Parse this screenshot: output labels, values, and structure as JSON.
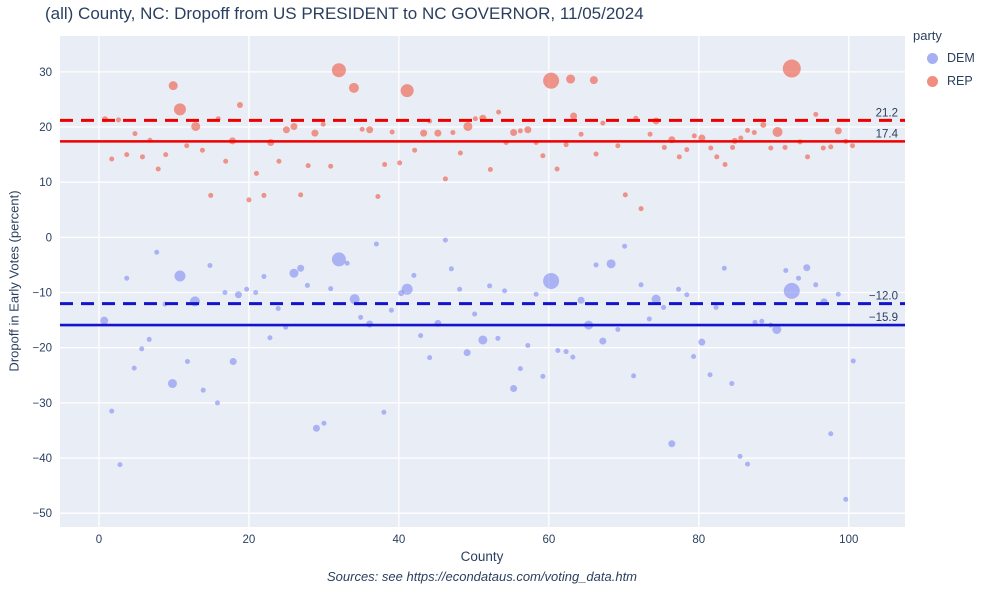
{
  "title": "(all) County, NC: Dropoff from US PRESIDENT to NC GOVERNOR, 11/05/2024",
  "source_note": "Sources: see https://econdataus.com/voting_data.htm",
  "legend": {
    "title": "party",
    "items": [
      {
        "label": "DEM",
        "color": "#a7aff3"
      },
      {
        "label": "REP",
        "color": "#f08d7e"
      }
    ]
  },
  "chart_data": {
    "type": "scatter",
    "title": "(all) County, NC: Dropoff from US PRESIDENT to NC GOVERNOR, 11/05/2024",
    "xlabel": "County",
    "ylabel": "Dropoff in Early Votes (percent)",
    "xlim": [
      -5.2,
      107.5
    ],
    "ylim": [
      -52.5,
      36.5
    ],
    "x_ticks": [
      0,
      20,
      40,
      60,
      80,
      100
    ],
    "y_ticks": [
      30,
      20,
      10,
      0,
      -10,
      -20,
      -30,
      -40,
      -50
    ],
    "grid": true,
    "plot_background": "#e8edf6",
    "grid_color": "#ffffff",
    "legend_position": "right",
    "series": [
      {
        "name": "DEM",
        "color": "rgb(120,130,240)",
        "opacity": 0.55,
        "points": [
          [
            0.7,
            -15.1,
            4
          ],
          [
            1.7,
            -31.5,
            2.5
          ],
          [
            2.8,
            -41.2,
            2.5
          ],
          [
            3.7,
            -7.4,
            2.5
          ],
          [
            4.7,
            -23.7,
            2.5
          ],
          [
            5.7,
            -20.2,
            2.5
          ],
          [
            6.7,
            -18.5,
            2.5
          ],
          [
            7.7,
            -2.7,
            2.5
          ],
          [
            8.8,
            -12.1,
            2.5
          ],
          [
            9.8,
            -26.5,
            4.5
          ],
          [
            10.8,
            -7.0,
            5.5
          ],
          [
            11.8,
            -22.5,
            2.5
          ],
          [
            12.8,
            -11.6,
            5
          ],
          [
            13.9,
            -27.7,
            2.5
          ],
          [
            14.8,
            -5.1,
            2.5
          ],
          [
            15.8,
            -30.0,
            2.5
          ],
          [
            16.8,
            -10.0,
            2.5
          ],
          [
            17.9,
            -22.5,
            3.5
          ],
          [
            18.6,
            -10.4,
            3.5
          ],
          [
            19.7,
            -9.4,
            2.5
          ],
          [
            20.9,
            -10.0,
            2.5
          ],
          [
            22.0,
            -7.1,
            2.5
          ],
          [
            22.8,
            -18.2,
            2.5
          ],
          [
            23.9,
            -12.9,
            2.5
          ],
          [
            24.9,
            -16.3,
            2.5
          ],
          [
            26.0,
            -6.5,
            4.5
          ],
          [
            26.9,
            -5.6,
            3.5
          ],
          [
            27.8,
            -8.7,
            2.5
          ],
          [
            29.0,
            -34.6,
            3.5
          ],
          [
            30.0,
            -33.7,
            2.5
          ],
          [
            30.9,
            -9.3,
            2.5
          ],
          [
            32.0,
            -4.0,
            7
          ],
          [
            33.1,
            -4.7,
            2.5
          ],
          [
            34.1,
            -11.2,
            5
          ],
          [
            34.9,
            -14.5,
            2.5
          ],
          [
            36.1,
            -15.7,
            3.5
          ],
          [
            37.0,
            -1.2,
            2.5
          ],
          [
            38.0,
            -31.7,
            2.5
          ],
          [
            39.0,
            -13.2,
            2.5
          ],
          [
            40.3,
            -10.1,
            3
          ],
          [
            41.1,
            -9.4,
            5.5
          ],
          [
            42.0,
            -6.9,
            2.5
          ],
          [
            42.9,
            -17.8,
            2.5
          ],
          [
            44.1,
            -21.8,
            2.5
          ],
          [
            45.2,
            -15.6,
            3.5
          ],
          [
            46.2,
            -0.5,
            2.5
          ],
          [
            47.0,
            -5.7,
            2.5
          ],
          [
            48.1,
            -9.4,
            2.5
          ],
          [
            49.1,
            -20.9,
            3.5
          ],
          [
            50.1,
            -13.9,
            2.5
          ],
          [
            51.2,
            -18.6,
            4.5
          ],
          [
            52.1,
            -8.8,
            2.5
          ],
          [
            53.2,
            -18.3,
            2.5
          ],
          [
            54.1,
            -9.7,
            2.5
          ],
          [
            55.3,
            -27.4,
            3.5
          ],
          [
            56.2,
            -23.8,
            2.5
          ],
          [
            57.2,
            -19.6,
            2.5
          ],
          [
            58.3,
            -10.3,
            2.5
          ],
          [
            59.2,
            -25.2,
            2.5
          ],
          [
            60.3,
            -7.9,
            8
          ],
          [
            61.2,
            -20.5,
            2.5
          ],
          [
            62.3,
            -20.7,
            2.5
          ],
          [
            63.2,
            -21.7,
            2.5
          ],
          [
            64.3,
            -11.4,
            3.5
          ],
          [
            65.3,
            -15.9,
            4.5
          ],
          [
            66.3,
            -5.0,
            2.5
          ],
          [
            67.2,
            -18.8,
            3.5
          ],
          [
            68.3,
            -4.8,
            4.5
          ],
          [
            69.2,
            -16.7,
            2.5
          ],
          [
            70.1,
            -1.6,
            2.5
          ],
          [
            71.3,
            -25.1,
            2.5
          ],
          [
            72.3,
            -8.6,
            2.5
          ],
          [
            73.4,
            -14.8,
            2.5
          ],
          [
            74.3,
            -11.2,
            4.5
          ],
          [
            75.3,
            -12.7,
            2.5
          ],
          [
            76.4,
            -37.4,
            3.5
          ],
          [
            77.3,
            -9.4,
            2.5
          ],
          [
            78.4,
            -10.4,
            2.5
          ],
          [
            79.3,
            -21.6,
            2.5
          ],
          [
            80.4,
            -19.0,
            3.5
          ],
          [
            81.5,
            -24.9,
            2.5
          ],
          [
            82.3,
            -12.7,
            2.5
          ],
          [
            83.4,
            -5.6,
            2.5
          ],
          [
            84.4,
            -26.5,
            2.5
          ],
          [
            85.5,
            -39.7,
            2.5
          ],
          [
            86.5,
            -41.1,
            2.5
          ],
          [
            87.5,
            -15.4,
            2.5
          ],
          [
            88.4,
            -15.2,
            2.5
          ],
          [
            89.6,
            -15.9,
            2.5
          ],
          [
            90.4,
            -16.7,
            4.5
          ],
          [
            91.6,
            -6.0,
            2.5
          ],
          [
            92.4,
            -9.7,
            8
          ],
          [
            93.3,
            -7.4,
            2.5
          ],
          [
            94.4,
            -5.5,
            3.5
          ],
          [
            95.6,
            -8.6,
            2.5
          ],
          [
            96.7,
            -11.7,
            3.5
          ],
          [
            97.6,
            -35.6,
            2.5
          ],
          [
            98.6,
            -10.3,
            2.5
          ],
          [
            99.6,
            -47.5,
            2.5
          ],
          [
            100.6,
            -22.4,
            2.5
          ]
        ]
      },
      {
        "name": "REP",
        "color": "rgb(240,90,70)",
        "opacity": 0.62,
        "points": [
          [
            0.8,
            21.4,
            3
          ],
          [
            1.7,
            14.2,
            2.5
          ],
          [
            2.6,
            21.3,
            2.5
          ],
          [
            3.7,
            15.0,
            2.5
          ],
          [
            4.8,
            18.8,
            2.5
          ],
          [
            5.8,
            14.6,
            2.5
          ],
          [
            6.8,
            17.6,
            2.5
          ],
          [
            7.9,
            12.4,
            2.5
          ],
          [
            8.9,
            15.0,
            2.5
          ],
          [
            9.9,
            27.5,
            4.5
          ],
          [
            10.8,
            23.2,
            6
          ],
          [
            11.7,
            16.6,
            2.5
          ],
          [
            12.9,
            20.1,
            4.5
          ],
          [
            13.8,
            15.8,
            2.5
          ],
          [
            14.9,
            7.6,
            2.5
          ],
          [
            15.9,
            21.5,
            2.5
          ],
          [
            16.9,
            13.8,
            2.5
          ],
          [
            17.8,
            17.5,
            3.5
          ],
          [
            18.8,
            24.0,
            3
          ],
          [
            20.0,
            6.8,
            2.5
          ],
          [
            21.0,
            11.6,
            2.5
          ],
          [
            22.0,
            7.6,
            2.5
          ],
          [
            22.9,
            17.2,
            3.5
          ],
          [
            24.0,
            13.8,
            2.5
          ],
          [
            25.0,
            19.5,
            3.5
          ],
          [
            26.0,
            20.1,
            3.5
          ],
          [
            26.9,
            7.7,
            2.5
          ],
          [
            27.9,
            13.0,
            2.5
          ],
          [
            28.8,
            18.9,
            3.5
          ],
          [
            29.9,
            20.5,
            2.5
          ],
          [
            30.9,
            12.9,
            2.5
          ],
          [
            32.0,
            30.3,
            7
          ],
          [
            34.0,
            27.1,
            5
          ],
          [
            35.1,
            19.6,
            2.5
          ],
          [
            36.1,
            19.5,
            3.5
          ],
          [
            37.2,
            7.4,
            2.5
          ],
          [
            38.1,
            13.2,
            2.5
          ],
          [
            39.1,
            19.1,
            2.5
          ],
          [
            40.1,
            13.5,
            2.5
          ],
          [
            41.1,
            26.6,
            6.5
          ],
          [
            42.1,
            15.8,
            2.5
          ],
          [
            43.3,
            18.9,
            3.5
          ],
          [
            44.1,
            21.1,
            2.5
          ],
          [
            45.2,
            18.9,
            3.5
          ],
          [
            46.2,
            10.6,
            2.5
          ],
          [
            47.2,
            19.0,
            2.5
          ],
          [
            48.2,
            15.3,
            2.5
          ],
          [
            49.2,
            20.1,
            4.5
          ],
          [
            50.2,
            21.5,
            2.5
          ],
          [
            51.2,
            21.6,
            3.5
          ],
          [
            52.2,
            12.3,
            2.5
          ],
          [
            53.3,
            22.7,
            2.5
          ],
          [
            54.3,
            17.2,
            2.5
          ],
          [
            55.3,
            19.0,
            3.5
          ],
          [
            56.2,
            19.3,
            2.5
          ],
          [
            57.2,
            19.5,
            3.5
          ],
          [
            58.3,
            17.2,
            2.5
          ],
          [
            59.2,
            14.8,
            2.5
          ],
          [
            60.3,
            28.4,
            8
          ],
          [
            61.1,
            12.4,
            2.5
          ],
          [
            62.3,
            16.8,
            2.5
          ],
          [
            62.9,
            28.7,
            4.5
          ],
          [
            63.3,
            22.0,
            3.5
          ],
          [
            64.3,
            18.7,
            2.5
          ],
          [
            66.0,
            28.5,
            4
          ],
          [
            66.3,
            15.1,
            2.5
          ],
          [
            67.2,
            20.7,
            2.5
          ],
          [
            69.2,
            16.6,
            2.5
          ],
          [
            70.2,
            7.7,
            2.5
          ],
          [
            71.6,
            21.6,
            2.5
          ],
          [
            72.3,
            5.2,
            2.5
          ],
          [
            73.5,
            18.7,
            2.5
          ],
          [
            74.3,
            21.1,
            3.5
          ],
          [
            75.4,
            16.3,
            2.5
          ],
          [
            76.4,
            17.7,
            3.5
          ],
          [
            77.4,
            14.6,
            2.5
          ],
          [
            78.4,
            15.9,
            2.5
          ],
          [
            79.4,
            18.4,
            2.5
          ],
          [
            80.4,
            18.0,
            3.5
          ],
          [
            81.6,
            16.2,
            2.5
          ],
          [
            82.4,
            14.6,
            2.5
          ],
          [
            83.5,
            13.2,
            2.5
          ],
          [
            84.5,
            16.3,
            2.5
          ],
          [
            84.8,
            17.5,
            3
          ],
          [
            85.6,
            18.0,
            2.5
          ],
          [
            86.5,
            19.4,
            2.5
          ],
          [
            87.4,
            19.0,
            2.5
          ],
          [
            88.6,
            20.4,
            3
          ],
          [
            89.6,
            16.2,
            2.5
          ],
          [
            90.5,
            19.1,
            5
          ],
          [
            91.5,
            16.3,
            2.5
          ],
          [
            92.4,
            30.6,
            9
          ],
          [
            93.5,
            17.3,
            2.5
          ],
          [
            94.5,
            14.6,
            2.5
          ],
          [
            95.6,
            22.3,
            2.5
          ],
          [
            96.6,
            16.2,
            2.5
          ],
          [
            97.6,
            16.4,
            2.5
          ],
          [
            98.6,
            19.3,
            3.5
          ],
          [
            99.6,
            17.4,
            2.5
          ],
          [
            100.5,
            16.6,
            2.5
          ]
        ]
      }
    ],
    "ref_lines": [
      {
        "series": "REP",
        "style": "dashed",
        "value": 21.2,
        "label": "21.2",
        "color": "#ee0000"
      },
      {
        "series": "REP",
        "style": "solid",
        "value": 17.4,
        "label": "17.4",
        "color": "#ee0000"
      },
      {
        "series": "DEM",
        "style": "dashed",
        "value": -12.0,
        "label": "-12.0",
        "color": "#1414cc"
      },
      {
        "series": "DEM",
        "style": "solid",
        "value": -15.9,
        "label": "-15.9",
        "color": "#1414cc"
      }
    ]
  }
}
